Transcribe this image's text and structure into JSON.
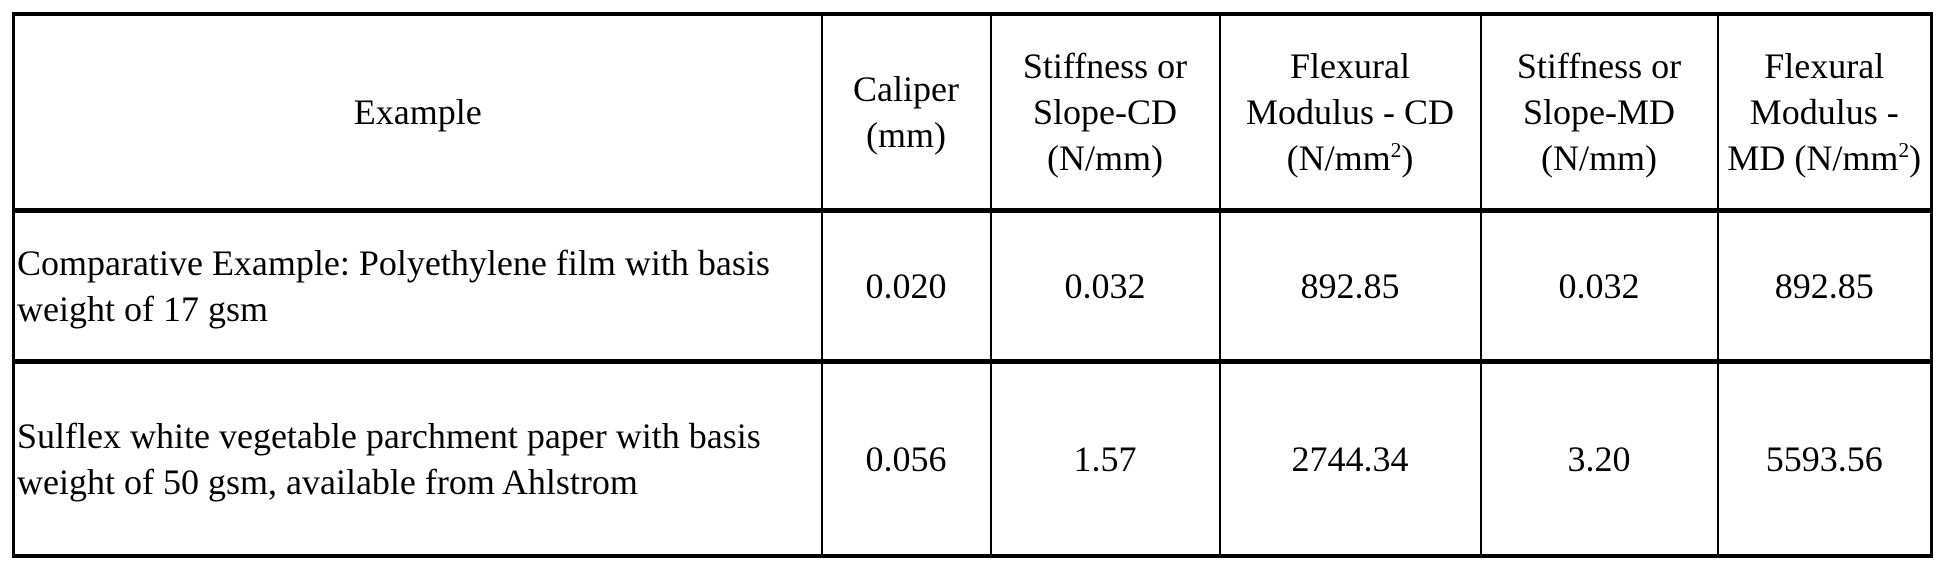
{
  "table": {
    "headers": [
      {
        "text": "Example"
      },
      {
        "text": "Caliper (mm)"
      },
      {
        "text": "Stiffness or Slope-CD (N/mm)"
      },
      {
        "text": "Flexural Modulus - CD (N/mm",
        "sup": "2",
        "after": ")"
      },
      {
        "text": "Stiffness or Slope-MD (N/mm)"
      },
      {
        "text": "Flexural Modulus - MD (N/mm",
        "sup": "2",
        "after": ")"
      }
    ],
    "rows": [
      [
        "Comparative Example: Polyethylene film with basis weight of 17 gsm",
        "0.020",
        "0.032",
        "892.85",
        "0.032",
        "892.85"
      ],
      [
        "Sulflex white vegetable parchment paper with basis weight of 50 gsm, available from Ahlstrom",
        "0.056",
        "1.57",
        "2744.34",
        "3.20",
        "5593.56"
      ]
    ]
  }
}
